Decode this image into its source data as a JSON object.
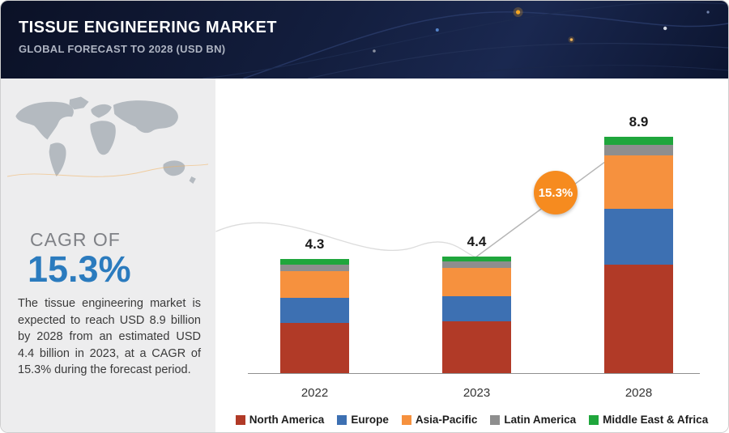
{
  "header": {
    "title": "TISSUE ENGINEERING MARKET",
    "subtitle": "GLOBAL FORECAST TO 2028 (USD BN)"
  },
  "sidebar": {
    "cagr_label": "CAGR OF",
    "cagr_value": "15.3%",
    "cagr_color": "#2b7bbe",
    "description": "The tissue engineering market is expected to reach USD 8.9 billion by 2028 from an estimated USD 4.4 billion in 2023, at a CAGR of 15.3% during the forecast period."
  },
  "badge": {
    "label": "15.3%",
    "color": "#f68b1f"
  },
  "chart_data": {
    "type": "bar",
    "stacked": true,
    "categories": [
      "2022",
      "2023",
      "2028"
    ],
    "series": [
      {
        "name": "North America",
        "color": "#b13a27",
        "values": [
          1.9,
          1.95,
          4.1
        ]
      },
      {
        "name": "Europe",
        "color": "#3d70b2",
        "values": [
          0.95,
          0.95,
          2.1
        ]
      },
      {
        "name": "Asia-Pacific",
        "color": "#f6913e",
        "values": [
          1.0,
          1.05,
          2.0
        ]
      },
      {
        "name": "Latin America",
        "color": "#8e8e8e",
        "values": [
          0.25,
          0.25,
          0.4
        ]
      },
      {
        "name": "Middle East & Africa",
        "color": "#1fa63c",
        "values": [
          0.2,
          0.2,
          0.3
        ]
      }
    ],
    "totals": [
      "4.3",
      "4.4",
      "8.9"
    ],
    "unit": "USD BN",
    "ylim": [
      0,
      9
    ],
    "grid": false,
    "legend_position": "bottom"
  }
}
